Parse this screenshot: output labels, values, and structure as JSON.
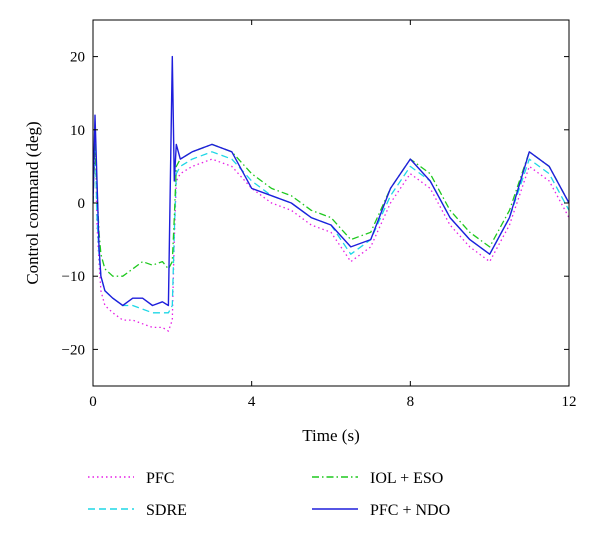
{
  "chart_data": {
    "type": "line",
    "title": "",
    "xlabel": "Time (s)",
    "ylabel": "Control command (deg)",
    "xlim": [
      0,
      12
    ],
    "ylim": [
      -25,
      25
    ],
    "xticks": [
      0,
      4,
      8,
      12
    ],
    "yticks": [
      -20,
      -10,
      0,
      10,
      20
    ],
    "grid": false,
    "legend_position": "bottom",
    "series": [
      {
        "name": "PFC",
        "style": "dotted",
        "color": "#e61ee6",
        "x": [
          0,
          0.05,
          0.1,
          0.15,
          0.2,
          0.3,
          0.5,
          0.75,
          1.0,
          1.25,
          1.5,
          1.75,
          1.9,
          2.0,
          2.05,
          2.1,
          2.2,
          2.5,
          3.0,
          3.5,
          4.0,
          4.5,
          5.0,
          5.5,
          6.0,
          6.5,
          7.0,
          7.5,
          8.0,
          8.5,
          9.0,
          9.5,
          10.0,
          10.5,
          11.0,
          11.5,
          12.0
        ],
        "values": [
          0,
          10,
          -3,
          -8,
          -12,
          -14,
          -15,
          -16,
          -16,
          -16.5,
          -17,
          -17,
          -17.5,
          -16,
          -5,
          3,
          4,
          5,
          6,
          5,
          2,
          0,
          -1,
          -3,
          -4,
          -8,
          -6,
          0,
          4,
          2,
          -3,
          -6,
          -8,
          -3,
          5,
          3,
          -2
        ]
      },
      {
        "name": "SDRE",
        "style": "dashed",
        "color": "#1ed7e6",
        "x": [
          0,
          0.05,
          0.1,
          0.15,
          0.2,
          0.3,
          0.5,
          0.75,
          1.0,
          1.25,
          1.5,
          1.75,
          1.9,
          2.0,
          2.05,
          2.1,
          2.2,
          2.5,
          3.0,
          3.5,
          4.0,
          4.5,
          5.0,
          5.5,
          6.0,
          6.5,
          7.0,
          7.5,
          8.0,
          8.5,
          9.0,
          9.5,
          10.0,
          10.5,
          11.0,
          11.5,
          12.0
        ],
        "values": [
          0,
          9,
          -2,
          -7,
          -10,
          -12,
          -13,
          -14,
          -14,
          -14.5,
          -15,
          -15,
          -15,
          -14,
          -4,
          4,
          5,
          6,
          7,
          6,
          3,
          1,
          0,
          -2,
          -3,
          -7,
          -5,
          1,
          5,
          3,
          -2,
          -5,
          -7,
          -2,
          6,
          4,
          -1
        ]
      },
      {
        "name": "IOL + ESO",
        "style": "dashdot",
        "color": "#1ec81e",
        "x": [
          0,
          0.05,
          0.1,
          0.15,
          0.2,
          0.3,
          0.5,
          0.75,
          1.0,
          1.25,
          1.5,
          1.75,
          1.9,
          2.0,
          2.05,
          2.1,
          2.2,
          2.5,
          3.0,
          3.5,
          4.0,
          4.5,
          5.0,
          5.5,
          6.0,
          6.5,
          7.0,
          7.5,
          8.0,
          8.5,
          9.0,
          9.5,
          10.0,
          10.5,
          11.0,
          11.5,
          12.0
        ],
        "values": [
          0,
          8,
          2,
          -4,
          -7,
          -9,
          -10,
          -10,
          -9,
          -8,
          -8.5,
          -8,
          -9,
          -8,
          -2,
          5,
          6,
          7,
          8,
          7,
          4,
          2,
          1,
          -1,
          -2,
          -5,
          -4,
          2,
          6,
          4,
          -1,
          -4,
          -6,
          -1,
          7,
          5,
          0
        ]
      },
      {
        "name": "PFC + NDO",
        "style": "solid",
        "color": "#1e1edc",
        "x": [
          0,
          0.05,
          0.1,
          0.15,
          0.2,
          0.3,
          0.5,
          0.75,
          1.0,
          1.25,
          1.5,
          1.75,
          1.9,
          2.0,
          2.05,
          2.1,
          2.2,
          2.5,
          3.0,
          3.5,
          4.0,
          4.5,
          5.0,
          5.5,
          6.0,
          6.5,
          7.0,
          7.5,
          8.0,
          8.5,
          9.0,
          9.5,
          10.0,
          10.5,
          11.0,
          11.5,
          12.0
        ],
        "values": [
          0,
          12,
          3,
          -6,
          -10,
          -12,
          -13,
          -14,
          -13,
          -13,
          -14,
          -13.5,
          -14,
          20,
          3,
          8,
          6,
          7,
          8,
          7,
          2,
          1,
          0,
          -2,
          -3,
          -6,
          -5,
          2,
          6,
          3,
          -2,
          -5,
          -7,
          -2,
          7,
          5,
          0
        ]
      }
    ]
  }
}
